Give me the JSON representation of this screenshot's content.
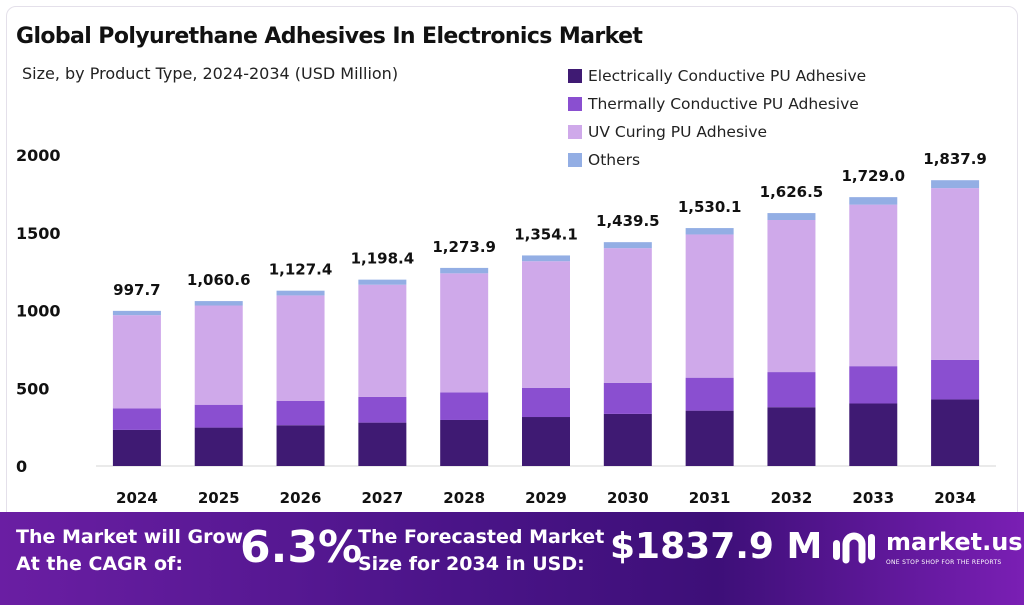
{
  "chart_data": {
    "type": "bar",
    "stacked": true,
    "title": "Global Polyurethane Adhesives In Electronics Market",
    "subtitle": "Size, by Product Type, 2024-2034 (USD Million)",
    "xlabel": "",
    "ylabel": "",
    "ylim": [
      0,
      2000
    ],
    "yticks": [
      0,
      500,
      1000,
      1500,
      2000
    ],
    "categories": [
      "2024",
      "2025",
      "2026",
      "2027",
      "2028",
      "2029",
      "2030",
      "2031",
      "2032",
      "2033",
      "2034"
    ],
    "totals": [
      997.7,
      1060.6,
      1127.4,
      1198.4,
      1273.9,
      1354.1,
      1439.5,
      1530.1,
      1626.5,
      1729.0,
      1837.9
    ],
    "total_labels": [
      "997.7",
      "1,060.6",
      "1,127.4",
      "1,198.4",
      "1,273.9",
      "1,354.1",
      "1,439.5",
      "1,530.1",
      "1,626.5",
      "1,729.0",
      "1,837.9"
    ],
    "series": [
      {
        "name": "Electrically Conductive PU Adhesive",
        "color": "#3f1a73",
        "values": [
          232,
          247,
          262,
          279,
          296,
          315,
          335,
          356,
          378,
          402,
          428
        ]
      },
      {
        "name": "Thermally Conductive PU Adhesive",
        "color": "#8a4fd0",
        "values": [
          138,
          147,
          156,
          166,
          177,
          188,
          200,
          212,
          226,
          240,
          255
        ]
      },
      {
        "name": "UV Curing PU Adhesive",
        "color": "#cfa9ea",
        "values": [
          600,
          638,
          679,
          721,
          766,
          814,
          866,
          921,
          978,
          1039,
          1104
        ]
      },
      {
        "name": "Others",
        "color": "#93aee4",
        "values": [
          27.7,
          28.6,
          30.4,
          32.4,
          34.9,
          37.1,
          38.5,
          41.1,
          44.5,
          48.0,
          50.9
        ]
      }
    ],
    "legend_position": "top-right",
    "grid": false
  },
  "banner": {
    "cagr_label_line1": "The Market will Grow",
    "cagr_label_line2": "At the CAGR of:",
    "cagr_value": "6.3%",
    "forecast_label_line1": "The Forecasted Market",
    "forecast_label_line2": "Size for 2034 in USD:",
    "forecast_value": "$1837.9 M"
  },
  "brand": {
    "name": "market.us",
    "tagline": "ONE STOP SHOP FOR THE REPORTS",
    "icon": "market-us-logo-icon"
  }
}
